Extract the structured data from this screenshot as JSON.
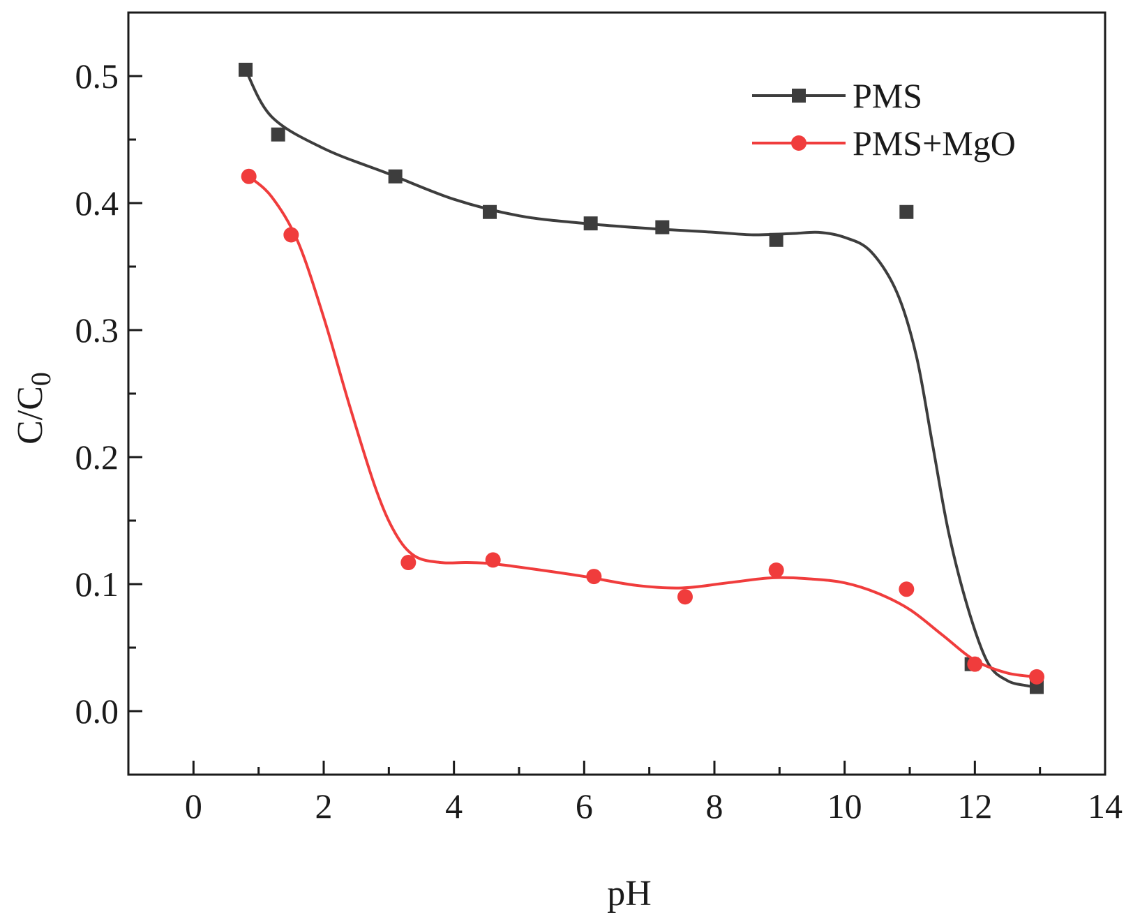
{
  "chart_data": {
    "type": "scatter",
    "title": "",
    "xlabel": "pH",
    "ylabel": "C/C",
    "ylabel_subscript": "0",
    "xlim": [
      -1,
      14
    ],
    "ylim": [
      -0.05,
      0.55
    ],
    "x_ticks": [
      0,
      2,
      4,
      6,
      8,
      10,
      12,
      14
    ],
    "x_tick_labels": [
      "0",
      "2",
      "4",
      "6",
      "8",
      "10",
      "12",
      "14"
    ],
    "x_minor_ticks": [
      1,
      3,
      5,
      7,
      9,
      11,
      13
    ],
    "y_ticks": [
      0.0,
      0.1,
      0.2,
      0.3,
      0.4,
      0.5
    ],
    "y_tick_labels": [
      "0.0",
      "0.1",
      "0.2",
      "0.3",
      "0.4",
      "0.5"
    ],
    "grid": false,
    "legend_position": "top-right",
    "series": [
      {
        "name": "PMS",
        "color": "#3d3d3d",
        "marker": "square",
        "x": [
          0.8,
          1.3,
          3.1,
          4.55,
          6.1,
          7.2,
          8.95,
          10.95,
          11.95,
          12.95
        ],
        "y": [
          0.505,
          0.454,
          0.421,
          0.393,
          0.384,
          0.381,
          0.371,
          0.393,
          0.037,
          0.019
        ],
        "curve": {
          "x": [
            0.8,
            1.2,
            2.0,
            3.0,
            4.0,
            5.0,
            6.0,
            7.0,
            8.0,
            8.6,
            9.2,
            9.6,
            10.0,
            10.4,
            10.8,
            11.1,
            11.35,
            11.6,
            11.9,
            12.2,
            12.5,
            12.8,
            12.95
          ],
          "y": [
            0.505,
            0.468,
            0.443,
            0.423,
            0.403,
            0.39,
            0.384,
            0.38,
            0.377,
            0.375,
            0.376,
            0.377,
            0.373,
            0.362,
            0.33,
            0.28,
            0.21,
            0.14,
            0.08,
            0.038,
            0.024,
            0.02,
            0.019
          ]
        }
      },
      {
        "name": "PMS+MgO",
        "color": "#f03c3c",
        "marker": "circle",
        "x": [
          0.85,
          1.5,
          3.3,
          4.6,
          6.15,
          7.55,
          8.95,
          10.95,
          12.0,
          12.95
        ],
        "y": [
          0.421,
          0.375,
          0.117,
          0.119,
          0.106,
          0.09,
          0.111,
          0.096,
          0.037,
          0.027
        ],
        "curve": {
          "x": [
            0.85,
            1.2,
            1.6,
            2.0,
            2.4,
            2.8,
            3.1,
            3.4,
            3.8,
            4.2,
            4.6,
            5.2,
            6.0,
            6.8,
            7.5,
            8.2,
            8.9,
            9.5,
            10.0,
            10.5,
            11.0,
            11.5,
            12.0,
            12.5,
            12.95
          ],
          "y": [
            0.421,
            0.405,
            0.37,
            0.31,
            0.24,
            0.175,
            0.14,
            0.122,
            0.117,
            0.117,
            0.116,
            0.112,
            0.106,
            0.099,
            0.097,
            0.101,
            0.105,
            0.104,
            0.101,
            0.093,
            0.08,
            0.06,
            0.04,
            0.03,
            0.027
          ]
        }
      }
    ]
  }
}
